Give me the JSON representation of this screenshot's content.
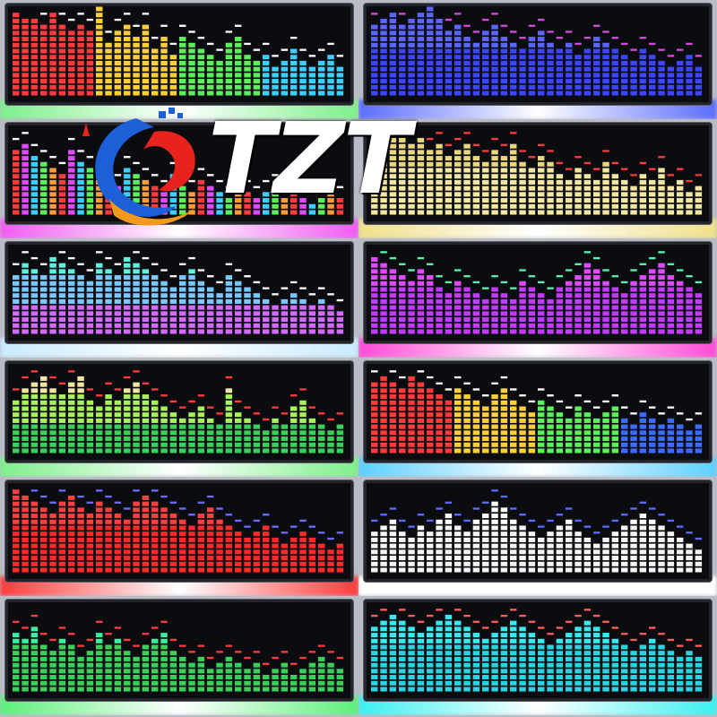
{
  "brand": {
    "text": "TZT",
    "logo": "tzt-swirl-logo",
    "colors": {
      "red": "#e8221c",
      "blue": "#1d5fd6",
      "orange": "#f39a1d"
    }
  },
  "panels": [
    {
      "theme": "rainbow-gradient",
      "glow": "#7cf08a",
      "colors": [
        "#ff3b3b",
        "#ffcf3b",
        "#5cf05c",
        "#3bd0ff"
      ],
      "peak": "#ffffff",
      "levels": [
        14,
        13,
        13,
        12,
        14,
        12,
        11,
        12,
        11,
        15,
        9,
        11,
        12,
        10,
        12,
        8,
        10,
        7,
        10,
        9,
        8,
        7,
        6,
        9,
        10,
        7,
        6,
        7,
        5,
        6,
        8,
        6,
        5,
        6,
        7,
        5
      ]
    },
    {
      "theme": "blue",
      "glow": "#5b6cff",
      "colors": [
        "#3d46ff",
        "#5c66ff"
      ],
      "peak": "#d24bd8",
      "levels": [
        12,
        13,
        14,
        12,
        13,
        14,
        15,
        13,
        11,
        12,
        10,
        9,
        11,
        12,
        10,
        9,
        8,
        10,
        11,
        9,
        8,
        9,
        7,
        8,
        10,
        9,
        8,
        7,
        6,
        8,
        7,
        6,
        5,
        6,
        7,
        5
      ]
    },
    {
      "theme": "multicolor",
      "glow": "#f25af2",
      "colors": [
        "#ff3b3b",
        "#e04bff",
        "#3bd0ff",
        "#5cf05c",
        "#ff9d3b"
      ],
      "peak": "#ffffff",
      "levels": [
        11,
        12,
        10,
        9,
        8,
        7,
        11,
        9,
        8,
        7,
        6,
        5,
        8,
        7,
        6,
        5,
        4,
        7,
        5,
        4,
        6,
        5,
        4,
        3,
        5,
        4,
        3,
        4,
        5,
        3,
        4,
        3,
        2,
        3,
        4,
        3
      ]
    },
    {
      "theme": "yellow",
      "glow": "#f0e08a",
      "colors": [
        "#f3e6a0",
        "#e8d77c"
      ],
      "peak": "#ff3b3b",
      "levels": [
        13,
        14,
        15,
        14,
        12,
        13,
        11,
        12,
        10,
        11,
        12,
        10,
        9,
        11,
        10,
        12,
        9,
        8,
        10,
        9,
        7,
        6,
        8,
        7,
        6,
        9,
        7,
        6,
        5,
        7,
        6,
        8,
        5,
        6,
        4,
        5
      ]
    },
    {
      "theme": "cyan-purple",
      "glow": "#c9eaff",
      "colors": [
        "#d46bff",
        "#7ac8ff",
        "#5ff0e0"
      ],
      "peak": "#ffffff",
      "levels": [
        10,
        12,
        11,
        10,
        13,
        12,
        11,
        10,
        9,
        12,
        11,
        10,
        13,
        12,
        11,
        10,
        9,
        8,
        10,
        11,
        9,
        8,
        7,
        10,
        9,
        8,
        7,
        6,
        5,
        6,
        7,
        6,
        5,
        6,
        5,
        4
      ]
    },
    {
      "theme": "magenta",
      "glow": "#ff4bd8",
      "colors": [
        "#c23bff",
        "#e04bff"
      ],
      "peak": "#5cf0b0",
      "levels": [
        13,
        12,
        11,
        10,
        9,
        11,
        10,
        8,
        7,
        9,
        8,
        7,
        6,
        8,
        7,
        6,
        9,
        8,
        7,
        6,
        8,
        9,
        10,
        12,
        11,
        9,
        8,
        7,
        9,
        10,
        11,
        12,
        10,
        9,
        8,
        7
      ]
    },
    {
      "theme": "green-yellow",
      "glow": "#7cf08a",
      "colors": [
        "#3bd05c",
        "#a8f05c",
        "#f3e6a0"
      ],
      "peak": "#ff3b3b",
      "levels": [
        9,
        11,
        12,
        13,
        11,
        10,
        12,
        13,
        9,
        8,
        10,
        9,
        11,
        12,
        10,
        9,
        8,
        7,
        6,
        7,
        8,
        6,
        5,
        11,
        7,
        6,
        5,
        4,
        6,
        5,
        8,
        9,
        6,
        5,
        4,
        5
      ]
    },
    {
      "theme": "rainbow-gradient",
      "glow": "#5bd0ff",
      "colors": [
        "#ff3b3b",
        "#ffcf3b",
        "#5cf05c",
        "#3b6bff"
      ],
      "peak": "#ffffff",
      "levels": [
        12,
        13,
        12,
        11,
        13,
        12,
        11,
        10,
        9,
        11,
        10,
        9,
        8,
        10,
        11,
        9,
        8,
        7,
        9,
        8,
        7,
        6,
        8,
        7,
        6,
        7,
        8,
        6,
        5,
        7,
        6,
        5,
        6,
        5,
        4,
        5
      ]
    },
    {
      "theme": "red",
      "glow": "#ff3b3b",
      "colors": [
        "#ff2a2a",
        "#ff4040"
      ],
      "peak": "#6b6bff",
      "levels": [
        14,
        13,
        12,
        11,
        10,
        12,
        13,
        11,
        10,
        12,
        11,
        10,
        9,
        12,
        13,
        12,
        11,
        10,
        9,
        8,
        10,
        11,
        9,
        8,
        7,
        6,
        7,
        8,
        6,
        5,
        6,
        7,
        6,
        5,
        4,
        5
      ]
    },
    {
      "theme": "white",
      "glow": "#ffffff",
      "colors": [
        "#f4f4f4",
        "#ffffff"
      ],
      "peak": "#5c6bff",
      "levels": [
        7,
        8,
        9,
        7,
        6,
        8,
        7,
        9,
        10,
        8,
        7,
        9,
        10,
        12,
        11,
        9,
        8,
        7,
        6,
        7,
        8,
        9,
        7,
        6,
        5,
        6,
        7,
        8,
        9,
        10,
        9,
        8,
        7,
        6,
        5,
        4
      ]
    },
    {
      "theme": "green-red",
      "glow": "#5cf07a",
      "colors": [
        "#3bd05c",
        "#3bf0a0"
      ],
      "peak": "#ff3b3b",
      "levels": [
        10,
        9,
        11,
        8,
        7,
        9,
        8,
        6,
        7,
        10,
        8,
        9,
        7,
        6,
        8,
        9,
        10,
        7,
        6,
        5,
        6,
        4,
        5,
        6,
        5,
        4,
        5,
        3,
        4,
        5,
        3,
        4,
        5,
        6,
        5,
        4
      ]
    },
    {
      "theme": "cyan",
      "glow": "#3bf0f0",
      "colors": [
        "#2ad4e0",
        "#3be8f0"
      ],
      "peak": "#ff5c5c",
      "levels": [
        11,
        12,
        13,
        12,
        11,
        10,
        11,
        12,
        13,
        12,
        11,
        10,
        9,
        10,
        11,
        12,
        11,
        10,
        9,
        8,
        9,
        10,
        11,
        12,
        11,
        10,
        9,
        8,
        7,
        8,
        9,
        8,
        7,
        6,
        7,
        6
      ]
    }
  ]
}
